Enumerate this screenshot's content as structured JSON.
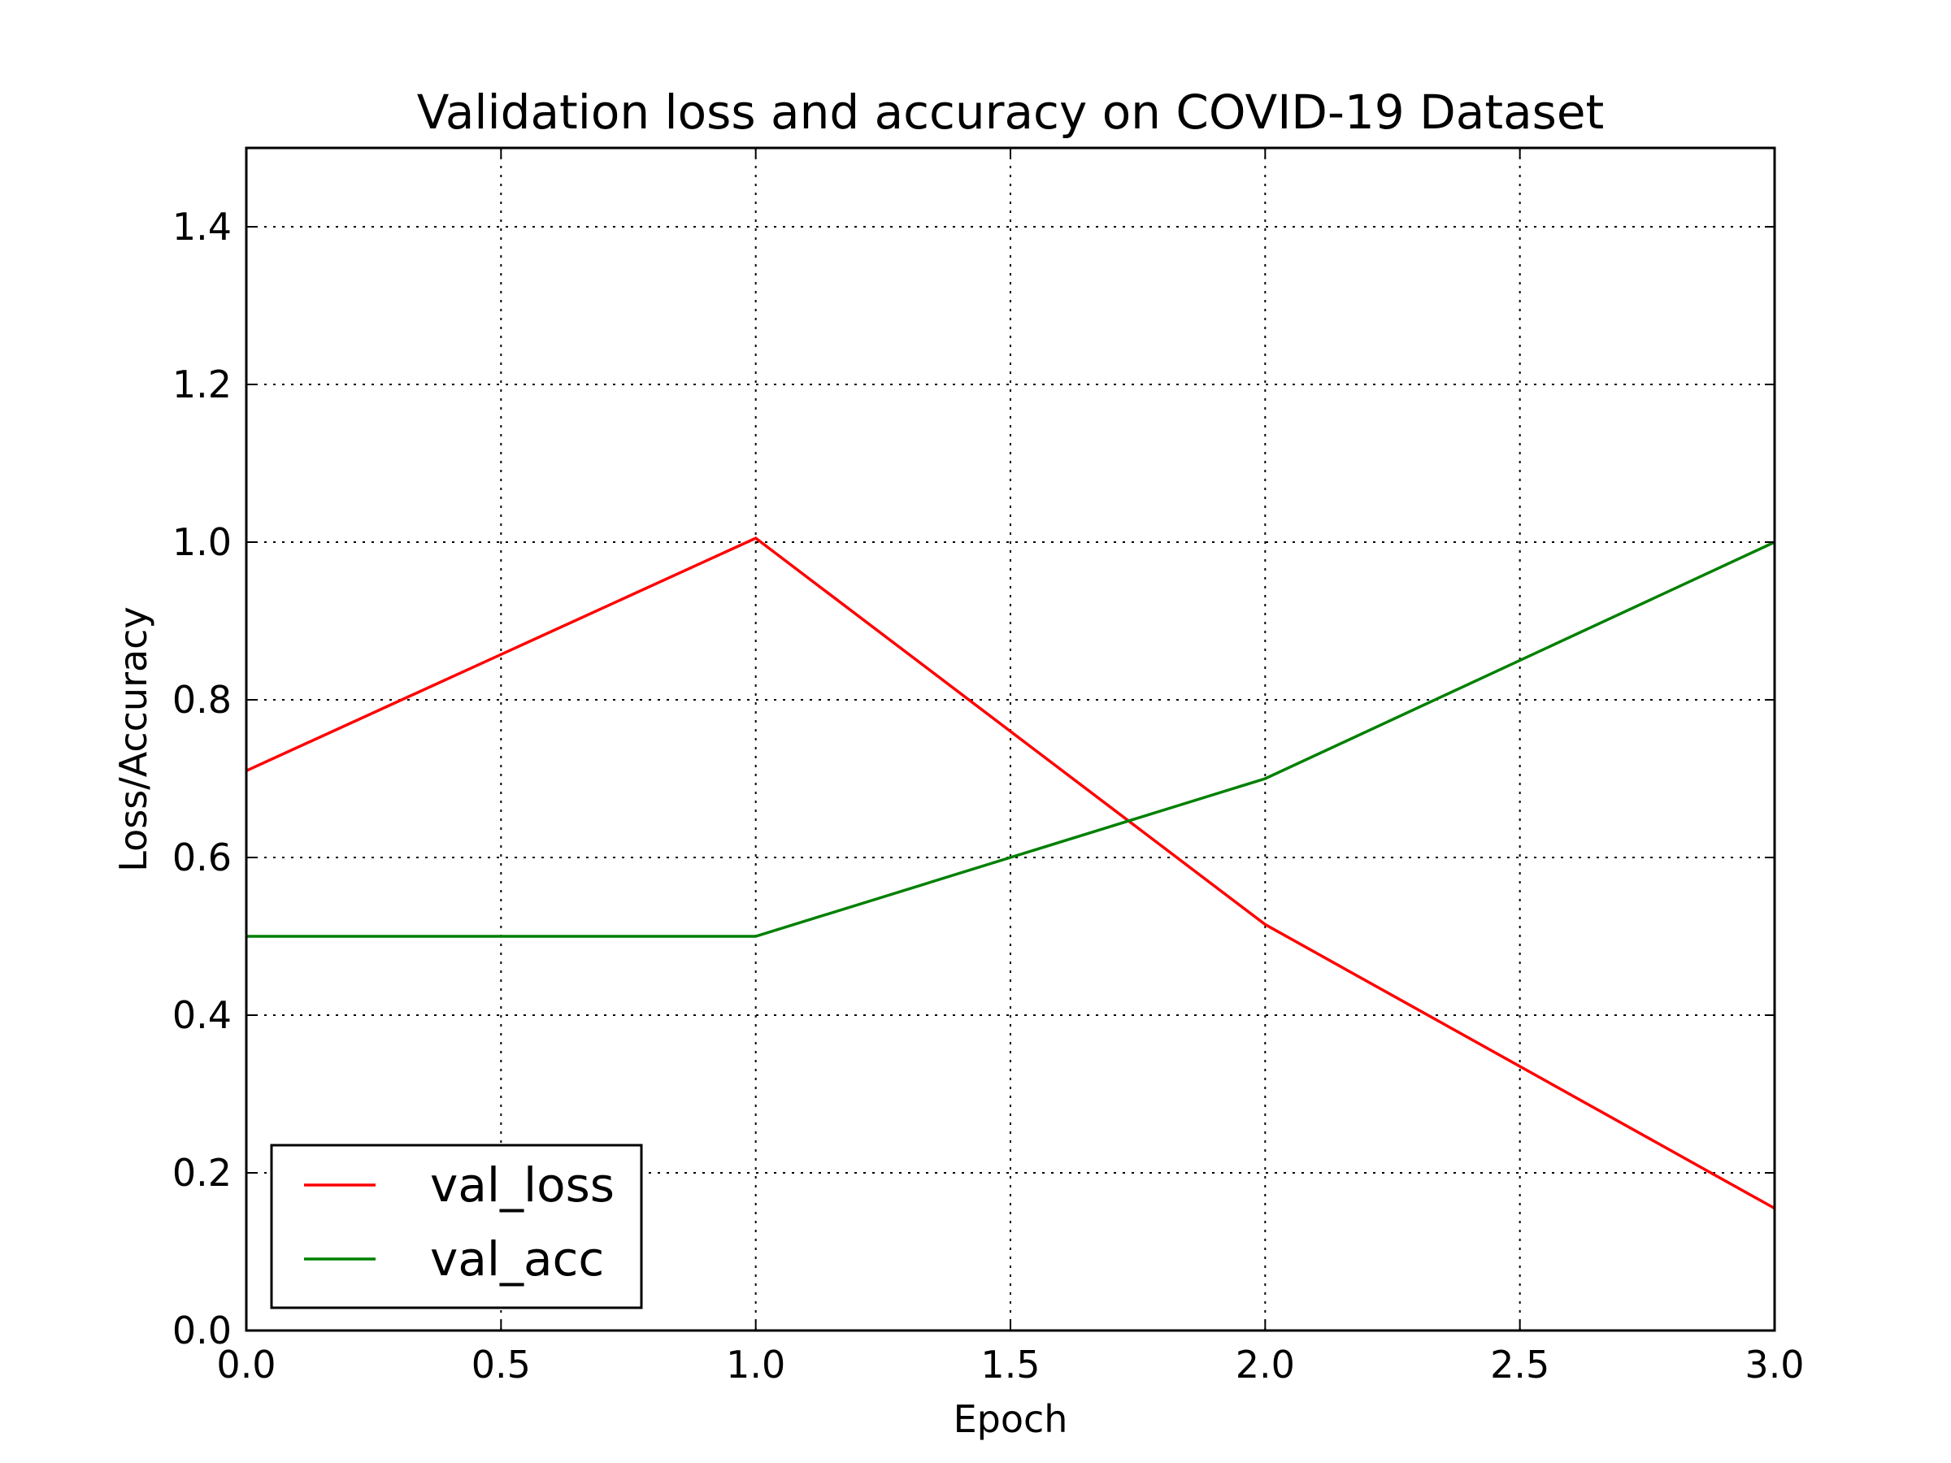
{
  "chart_data": {
    "type": "line",
    "title": "Validation loss and accuracy on COVID-19 Dataset",
    "xlabel": "Epoch",
    "ylabel": "Loss/Accuracy",
    "xlim": [
      0.0,
      3.0
    ],
    "ylim": [
      0.0,
      1.5
    ],
    "xticks": [
      "0.0",
      "0.5",
      "1.0",
      "1.5",
      "2.0",
      "2.5",
      "3.0"
    ],
    "yticks": [
      "0.0",
      "0.2",
      "0.4",
      "0.6",
      "0.8",
      "1.0",
      "1.2",
      "1.4"
    ],
    "grid": true,
    "legend_position": "lower-left",
    "x": [
      0,
      1,
      2,
      3
    ],
    "series": [
      {
        "name": "val_loss",
        "color": "#ff0000",
        "values": [
          0.71,
          1.005,
          0.515,
          0.155
        ]
      },
      {
        "name": "val_acc",
        "color": "#008000",
        "values": [
          0.5,
          0.5,
          0.7,
          1.0
        ]
      }
    ]
  }
}
